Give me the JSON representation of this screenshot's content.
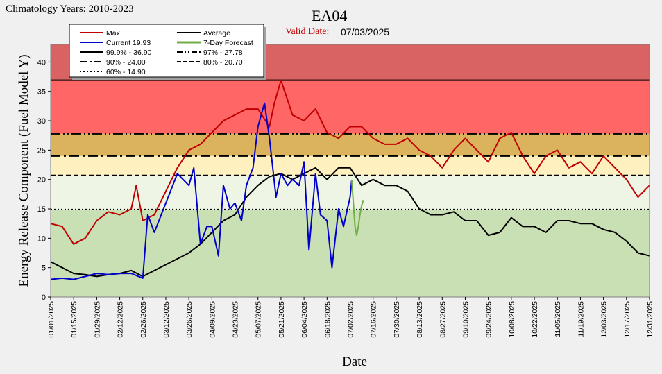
{
  "corner_label": "Climatology Years: 2010-2023",
  "valid_date_label": "Valid Date:",
  "valid_date_value": "07/03/2025",
  "colors": {
    "max": "#c00000",
    "current": "#0000cc",
    "average": "#000000",
    "forecast": "#70ad47",
    "band_top": "#d96363",
    "band_97": "#ff6666",
    "band_90": "#dbb35c",
    "band_80": "#fff0c0",
    "band_60": "#eef5e4",
    "band_low": "#c9e0b4"
  },
  "chart_data": {
    "type": "line",
    "title": "EA04",
    "xlabel": "Date",
    "ylabel": "Energy Release Component (Fuel Model Y)",
    "ylim": [
      0,
      43
    ],
    "yticks": [
      0,
      5,
      10,
      15,
      20,
      25,
      30,
      35,
      40
    ],
    "grid": false,
    "legend_placement": "top-left",
    "x_tick_labels": [
      "01/01/2025",
      "01/15/2025",
      "01/29/2025",
      "02/12/2025",
      "02/26/2025",
      "03/12/2025",
      "03/26/2025",
      "04/09/2025",
      "04/23/2025",
      "05/07/2025",
      "05/21/2025",
      "06/04/2025",
      "06/18/2025",
      "07/02/2025",
      "07/16/2025",
      "07/30/2025",
      "08/13/2025",
      "08/27/2025",
      "09/10/2025",
      "09/24/2025",
      "10/08/2025",
      "10/22/2025",
      "11/05/2025",
      "11/19/2025",
      "12/03/2025",
      "12/17/2025",
      "12/31/2025"
    ],
    "percentiles": [
      {
        "label": "99.9% -  36.90",
        "value": 36.9,
        "dash": "solid"
      },
      {
        "label": "97% -  27.78",
        "value": 27.78,
        "dash": "dashdotdot"
      },
      {
        "label": "90% -  24.00",
        "value": 24.0,
        "dash": "dashdot"
      },
      {
        "label": "80% -  20.70",
        "value": 20.7,
        "dash": "dash"
      },
      {
        "label": "60% -  14.90",
        "value": 14.9,
        "dash": "dot"
      }
    ],
    "series": [
      {
        "name": "Max",
        "color": "#c00000",
        "x": [
          "01/01",
          "01/08",
          "01/15",
          "01/22",
          "01/29",
          "02/05",
          "02/12",
          "02/19",
          "02/22",
          "02/26",
          "03/05",
          "03/12",
          "03/19",
          "03/26",
          "04/02",
          "04/09",
          "04/16",
          "04/23",
          "04/30",
          "05/07",
          "05/14",
          "05/17",
          "05/21",
          "05/28",
          "06/04",
          "06/11",
          "06/18",
          "06/25",
          "07/02",
          "07/09",
          "07/16",
          "07/23",
          "07/30",
          "08/06",
          "08/13",
          "08/20",
          "08/27",
          "09/03",
          "09/10",
          "09/17",
          "09/24",
          "10/01",
          "10/08",
          "10/15",
          "10/22",
          "10/29",
          "11/05",
          "11/12",
          "11/19",
          "11/26",
          "12/03",
          "12/10",
          "12/17",
          "12/24",
          "12/31"
        ],
        "y": [
          12.5,
          12,
          9,
          10,
          13,
          14.5,
          14,
          15,
          19,
          13,
          14,
          18,
          22,
          25,
          26,
          28,
          30,
          31,
          32,
          32,
          29,
          33,
          36.9,
          31,
          30,
          32,
          28,
          27,
          29,
          29,
          27,
          26,
          26,
          27,
          25,
          24,
          22,
          25,
          27,
          25,
          23,
          27,
          28,
          24,
          21,
          24,
          25,
          22,
          23,
          21,
          24,
          22,
          20,
          17,
          19
        ]
      },
      {
        "name": "Average",
        "color": "#000000",
        "x": [
          "01/01",
          "01/08",
          "01/15",
          "01/22",
          "01/29",
          "02/05",
          "02/12",
          "02/19",
          "02/26",
          "03/05",
          "03/12",
          "03/19",
          "03/26",
          "04/02",
          "04/09",
          "04/16",
          "04/23",
          "04/30",
          "05/07",
          "05/14",
          "05/21",
          "05/28",
          "06/04",
          "06/11",
          "06/18",
          "06/25",
          "07/02",
          "07/09",
          "07/16",
          "07/23",
          "07/30",
          "08/06",
          "08/13",
          "08/20",
          "08/27",
          "09/03",
          "09/10",
          "09/17",
          "09/24",
          "10/01",
          "10/08",
          "10/15",
          "10/22",
          "10/29",
          "11/05",
          "11/12",
          "11/19",
          "11/26",
          "12/03",
          "12/10",
          "12/17",
          "12/24",
          "12/31"
        ],
        "y": [
          6,
          5,
          4,
          3.8,
          3.5,
          3.8,
          4,
          4.5,
          3.5,
          4.5,
          5.5,
          6.5,
          7.5,
          9,
          11,
          13,
          14,
          17,
          19,
          20.5,
          21,
          20,
          21,
          22,
          20,
          22,
          22,
          19,
          20,
          19,
          19,
          18,
          15,
          14,
          14,
          14.5,
          13,
          13,
          10.5,
          11,
          13.5,
          12,
          12,
          11,
          13,
          13,
          12.5,
          12.5,
          11.5,
          11,
          9.5,
          7.5,
          7
        ]
      },
      {
        "name": "Current",
        "color": "#0000cc",
        "x": [
          "01/01",
          "01/08",
          "01/15",
          "01/22",
          "01/29",
          "02/05",
          "02/12",
          "02/19",
          "02/26",
          "03/01",
          "03/05",
          "03/12",
          "03/19",
          "03/26",
          "03/29",
          "04/02",
          "04/06",
          "04/09",
          "04/13",
          "04/16",
          "04/20",
          "04/23",
          "04/27",
          "04/30",
          "05/04",
          "05/07",
          "05/11",
          "05/14",
          "05/18",
          "05/21",
          "05/25",
          "05/28",
          "06/01",
          "06/04",
          "06/07",
          "06/11",
          "06/14",
          "06/18",
          "06/21",
          "06/25",
          "06/28",
          "07/02",
          "07/03"
        ],
        "y": [
          3,
          3.2,
          3,
          3.5,
          4,
          3.8,
          4,
          4,
          3.2,
          14,
          11,
          16,
          21,
          19,
          22,
          9,
          12,
          12,
          7,
          19,
          15,
          16,
          13,
          19,
          22,
          29,
          33,
          27,
          17,
          21,
          19,
          20,
          19,
          23,
          8,
          21,
          14,
          13,
          5,
          15,
          12,
          17,
          19.93
        ]
      },
      {
        "name": "7-Day Forecast",
        "color": "#70ad47",
        "x": [
          "07/03",
          "07/04",
          "07/05",
          "07/06",
          "07/07",
          "07/08",
          "07/09",
          "07/10"
        ],
        "y": [
          19.93,
          16,
          12,
          10.5,
          12,
          14,
          15.5,
          16.5
        ]
      }
    ],
    "legend": {
      "max": "Max",
      "average": "Average",
      "current": "Current  19.93",
      "forecast": "7-Day Forecast",
      "p999": "99.9% -  36.90",
      "p97": "97% -  27.78",
      "p90": "90% -  24.00",
      "p80": "80% -  20.70",
      "p60": "60% -  14.90"
    }
  }
}
